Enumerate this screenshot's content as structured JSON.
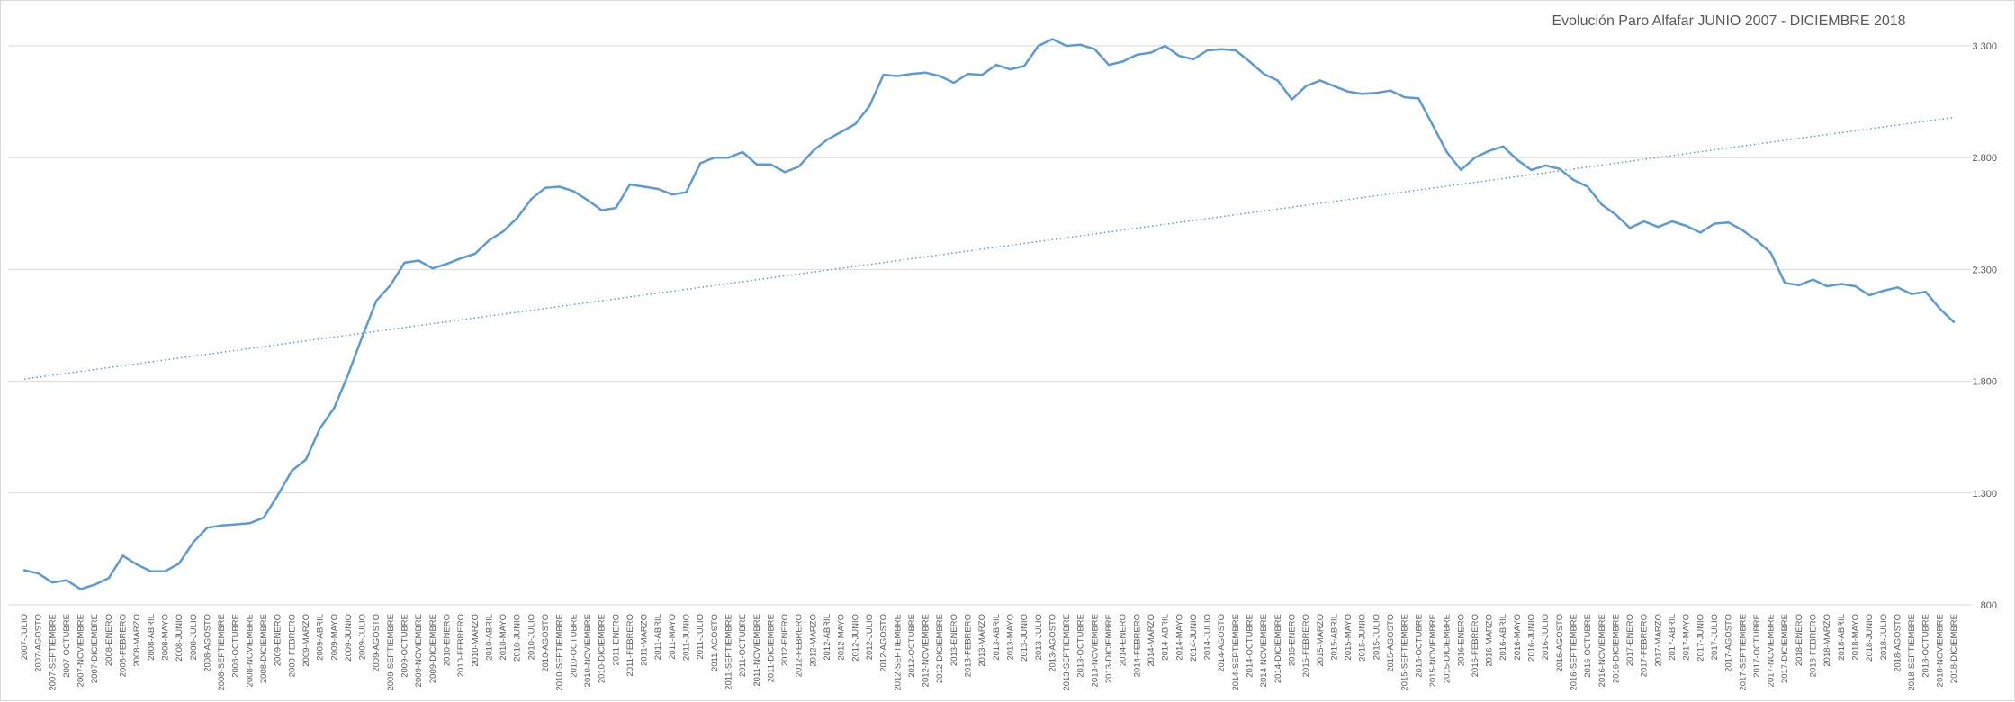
{
  "chart_data": {
    "type": "line",
    "title": "Evolución Paro Alfafar JUNIO 2007 - DICIEMBRE 2018",
    "xlabel": "",
    "ylabel": "",
    "ylim": [
      800,
      3300
    ],
    "y_ticks": [
      "800",
      "1.300",
      "1.800",
      "2.300",
      "2.800",
      "3.300"
    ],
    "y_axis_position": "right",
    "grid": true,
    "legend": "none",
    "categories": [
      "2007-JULIO",
      "2007-AGOSTO",
      "2007-SEPTIEMBRE",
      "2007-OCTUBRE",
      "2007-NOVIEMBRE",
      "2007-DICIEMBRE",
      "2008-ENERO",
      "2008-FEBRERO",
      "2008-MARZO",
      "2008-ABRIL",
      "2008-MAYO",
      "2008-JUNIO",
      "2008-JULIO",
      "2008-AGOSTO",
      "2008-SEPTIEMBRE",
      "2008-OCTUBRE",
      "2008-NOVIEMBRE",
      "2008-DICIEMBRE",
      "2009-ENERO",
      "2009-FEBRERO",
      "2009-MARZO",
      "2009-ABRIL",
      "2009-MAYO",
      "2009-JUNIO",
      "2009-JULIO",
      "2009-AGOSTO",
      "2009-SEPTIEMBRE",
      "2009-OCTUBRE",
      "2009-NOVIEMBRE",
      "2009-DICIEMBRE",
      "2010-ENERO",
      "2010-FEBRERO",
      "2010-MARZO",
      "2010-ABRIL",
      "2010-MAYO",
      "2010-JUNIO",
      "2010-JULIO",
      "2010-AGOSTO",
      "2010-SEPTIEMBRE",
      "2010-OCTUBRE",
      "2010-NOVIEMBRE",
      "2010-DICIEMBRE",
      "2011-ENERO",
      "2011-FEBRERO",
      "2011-MARZO",
      "2011-ABRIL",
      "2011-MAYO",
      "2011-JUNIO",
      "2011-JULIO",
      "2011-AGOSTO",
      "2011-SEPTIEMBRE",
      "2011-OCTUBRE",
      "2011-NOVIEMBRE",
      "2011-DICIEMBRE",
      "2012-ENERO",
      "2012-FEBRERO",
      "2012-MARZO",
      "2012-ABRIL",
      "2012-MAYO",
      "2012-JUNIO",
      "2012-JULIO",
      "2012-AGOSTO",
      "2012-SEPTIEMBRE",
      "2012-OCTUBRE",
      "2012-NOVIEMBRE",
      "2012-DICIEMBRE",
      "2013-ENERO",
      "2013-FEBRERO",
      "2013-MARZO",
      "2013-ABRIL",
      "2013-MAYO",
      "2013-JUNIO",
      "2013-JULIO",
      "2013-AGOSTO",
      "2013-SEPTIEMBRE",
      "2013-OCTUBRE",
      "2013-NOVIEMBRE",
      "2013-DICIEMBRE",
      "2014-ENERO",
      "2014-FEBRERO",
      "2014-MARZO",
      "2014-ABRIL",
      "2014-MAYO",
      "2014-JUNIO",
      "2014-JULIO",
      "2014-AGOSTO",
      "2014-SEPTIEMBRE",
      "2014-OCTUBRE",
      "2014-NOVIEMBRE",
      "2014-DICIEMBRE",
      "2015-ENERO",
      "2015-FEBRERO",
      "2015-MARZO",
      "2015-ABRIL",
      "2015-MAYO",
      "2015-JUNIO",
      "2015-JULIO",
      "2015-AGOSTO",
      "2015-SEPTIEMBRE",
      "2015-OCTUBRE",
      "2015-NOVIEMBRE",
      "2015-DICIEMBRE",
      "2016-ENERO",
      "2016-FEBRERO",
      "2016-MARZO",
      "2016-ABRIL",
      "2016-MAYO",
      "2016-JUNIO",
      "2016-JULIO",
      "2016-AGOSTO",
      "2016-SEPTIEMBRE",
      "2016-OCTUBRE",
      "2016-NOVIEMBRE",
      "2016-DICIEMBRE",
      "2017-ENERO",
      "2017-FEBRERO",
      "2017-MARZO",
      "2017-ABRIL",
      "2017-MAYO",
      "2017-JUNIO",
      "2017-JULIO",
      "2017-AGOSTO",
      "2017-SEPTIEMBRE",
      "2017-OCTUBRE",
      "2017-NOVIEMBRE",
      "2017-DICIEMBRE",
      "2018-ENERO",
      "2018-FEBRERO",
      "2018-MARZO",
      "2018-ABRIL",
      "2018-MAYO",
      "2018-JUNIO",
      "2018-JULIO",
      "2018-AGOSTO",
      "2018-SEPTIEMBRE",
      "2018-OCTUBRE",
      "2018-NOVIEMBRE",
      "2018-DICIEMBRE"
    ],
    "series": [
      {
        "values": [
          955,
          940,
          900,
          910,
          870,
          890,
          920,
          1020,
          980,
          950,
          950,
          985,
          1080,
          1145,
          1155,
          1160,
          1165,
          1190,
          1290,
          1400,
          1450,
          1590,
          1680,
          1830,
          2000,
          2160,
          2230,
          2330,
          2340,
          2305,
          2325,
          2350,
          2370,
          2430,
          2470,
          2530,
          2615,
          2665,
          2670,
          2650,
          2610,
          2565,
          2575,
          2680,
          2670,
          2660,
          2635,
          2645,
          2775,
          2800,
          2800,
          2825,
          2770,
          2770,
          2735,
          2760,
          2830,
          2880,
          2915,
          2950,
          3030,
          3170,
          3165,
          3175,
          3180,
          3165,
          3135,
          3175,
          3170,
          3215,
          3195,
          3210,
          3300,
          3330,
          3300,
          3305,
          3285,
          3215,
          3230,
          3260,
          3270,
          3300,
          3255,
          3240,
          3280,
          3285,
          3280,
          3230,
          3175,
          3145,
          3060,
          3120,
          3145,
          3120,
          3095,
          3085,
          3090,
          3100,
          3070,
          3065,
          2945,
          2825,
          2745,
          2800,
          2830,
          2850,
          2790,
          2745,
          2765,
          2750,
          2700,
          2670,
          2590,
          2545,
          2485,
          2515,
          2490,
          2515,
          2495,
          2465,
          2505,
          2510,
          2475,
          2430,
          2375,
          2240,
          2230,
          2255,
          2225,
          2235,
          2225,
          2185,
          2205,
          2220,
          2190,
          2200,
          2125,
          2065
        ],
        "color": "#5b9bd5"
      }
    ],
    "trendline": {
      "type": "linear",
      "start": 1810,
      "end": 2980,
      "color": "#5b9bd5",
      "style": "dotted"
    }
  }
}
